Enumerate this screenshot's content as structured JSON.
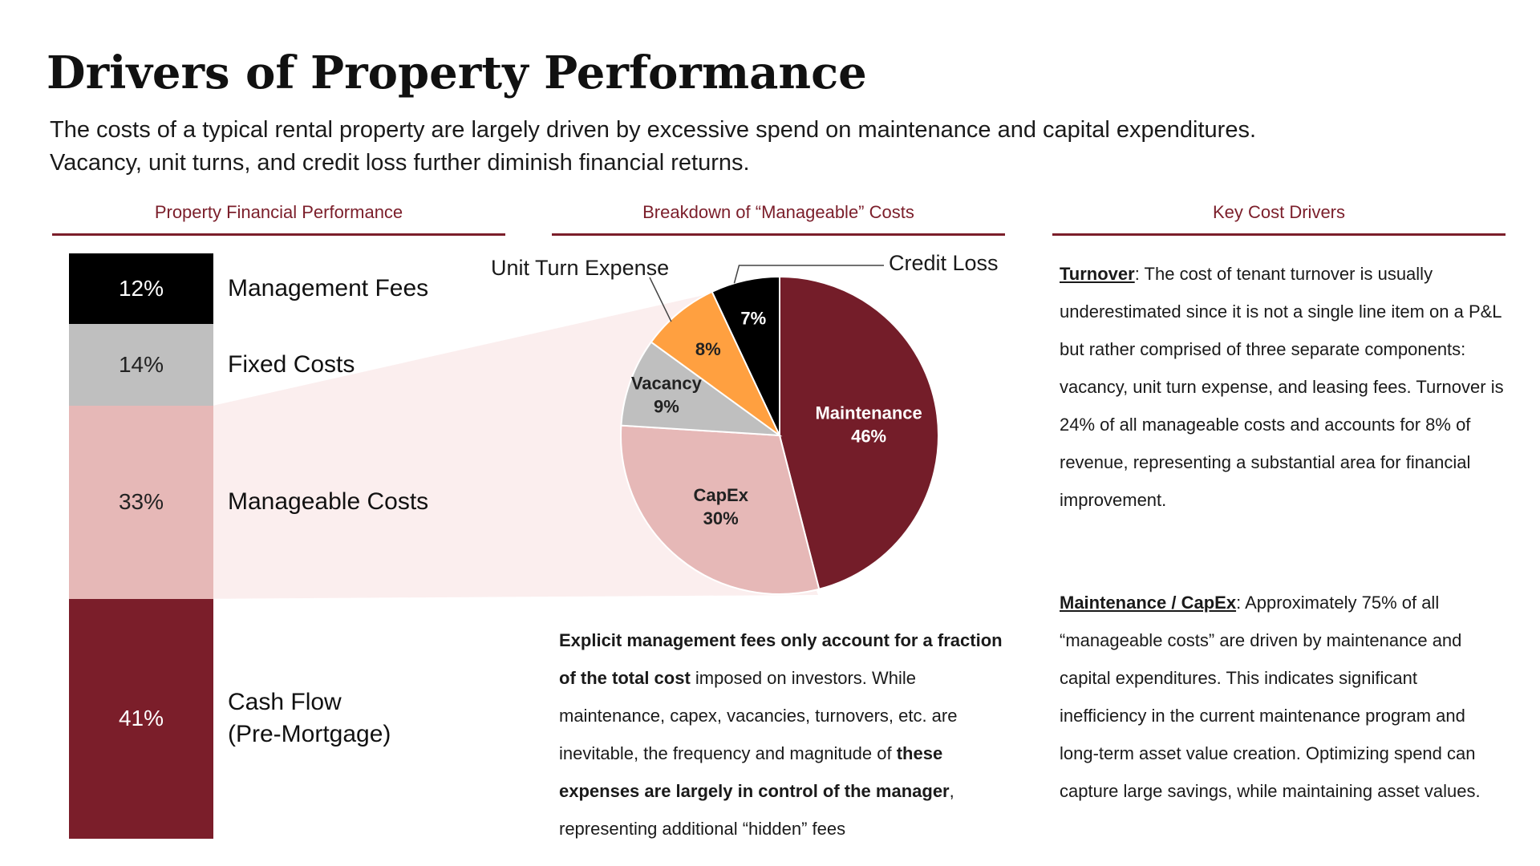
{
  "title": "Drivers of Property Performance",
  "subtitle_line1": "The costs of a typical rental property are largely driven by excessive spend on maintenance and capital expenditures.",
  "subtitle_line2": "Vacancy, unit turns, and credit loss further diminish financial returns.",
  "sections": {
    "left": "Property Financial Performance",
    "middle": "Breakdown of “Manageable” Costs",
    "right": "Key Cost Drivers"
  },
  "colors": {
    "accent": "#7b1e2a",
    "black": "#000000",
    "gray": "#bfbfbf",
    "pink": "#e6b8b7",
    "orange": "#ffa040"
  },
  "chart_data": [
    {
      "type": "bar",
      "stacked": true,
      "orientation": "vertical",
      "title": "Property Financial Performance",
      "categories": [
        "Management Fees",
        "Fixed Costs",
        "Manageable Costs",
        "Cash Flow (Pre-Mortgage)"
      ],
      "labels": [
        "Management Fees",
        "Fixed Costs",
        "Manageable Costs",
        "Cash Flow",
        "(Pre-Mortgage)"
      ],
      "values": [
        12,
        14,
        33,
        41
      ],
      "value_labels": [
        "12%",
        "14%",
        "33%",
        "41%"
      ],
      "colors": [
        "#000000",
        "#bfbfbf",
        "#e6b8b7",
        "#7b1e2a"
      ]
    },
    {
      "type": "pie",
      "title": "Breakdown of “Manageable” Costs",
      "start_angle_deg": 0,
      "direction": "clockwise",
      "slices": [
        {
          "name": "Maintenance",
          "value": 46,
          "label": "46%",
          "color": "#741d29"
        },
        {
          "name": "CapEx",
          "value": 30,
          "label": "30%",
          "color": "#e6b8b7"
        },
        {
          "name": "Vacancy",
          "value": 9,
          "label": "9%",
          "color": "#bfbfbf"
        },
        {
          "name": "Unit Turn Expense",
          "value": 8,
          "label": "8%",
          "color": "#ffa040"
        },
        {
          "name": "Credit Loss",
          "value": 7,
          "label": "7%",
          "color": "#000000"
        }
      ]
    }
  ],
  "middle_text": {
    "b1": "Explicit management fees only account for a fraction of the total cost",
    "t1": " imposed on investors. While maintenance, capex, vacancies, turnovers, etc. are inevitable, the frequency and magnitude of ",
    "b2": "these expenses are largely in control of the manager",
    "t2": ", representing additional “hidden” fees"
  },
  "right_text": {
    "turnover_head": "Turnover",
    "turnover_body": ": The cost of tenant turnover is usually underestimated since it is not a single line item on a P&L but rather comprised of three separate components: vacancy, unit turn expense, and leasing fees. Turnover is 24% of all manageable costs and accounts for 8% of revenue, representing a substantial area for financial improvement.",
    "maint_head": "Maintenance / CapEx",
    "maint_body": ": Approximately 75% of all “manageable costs” are driven by maintenance and capital expenditures. This indicates significant inefficiency in the current maintenance program and long-term asset value creation. Optimizing spend can capture large savings, while maintaining asset values."
  }
}
